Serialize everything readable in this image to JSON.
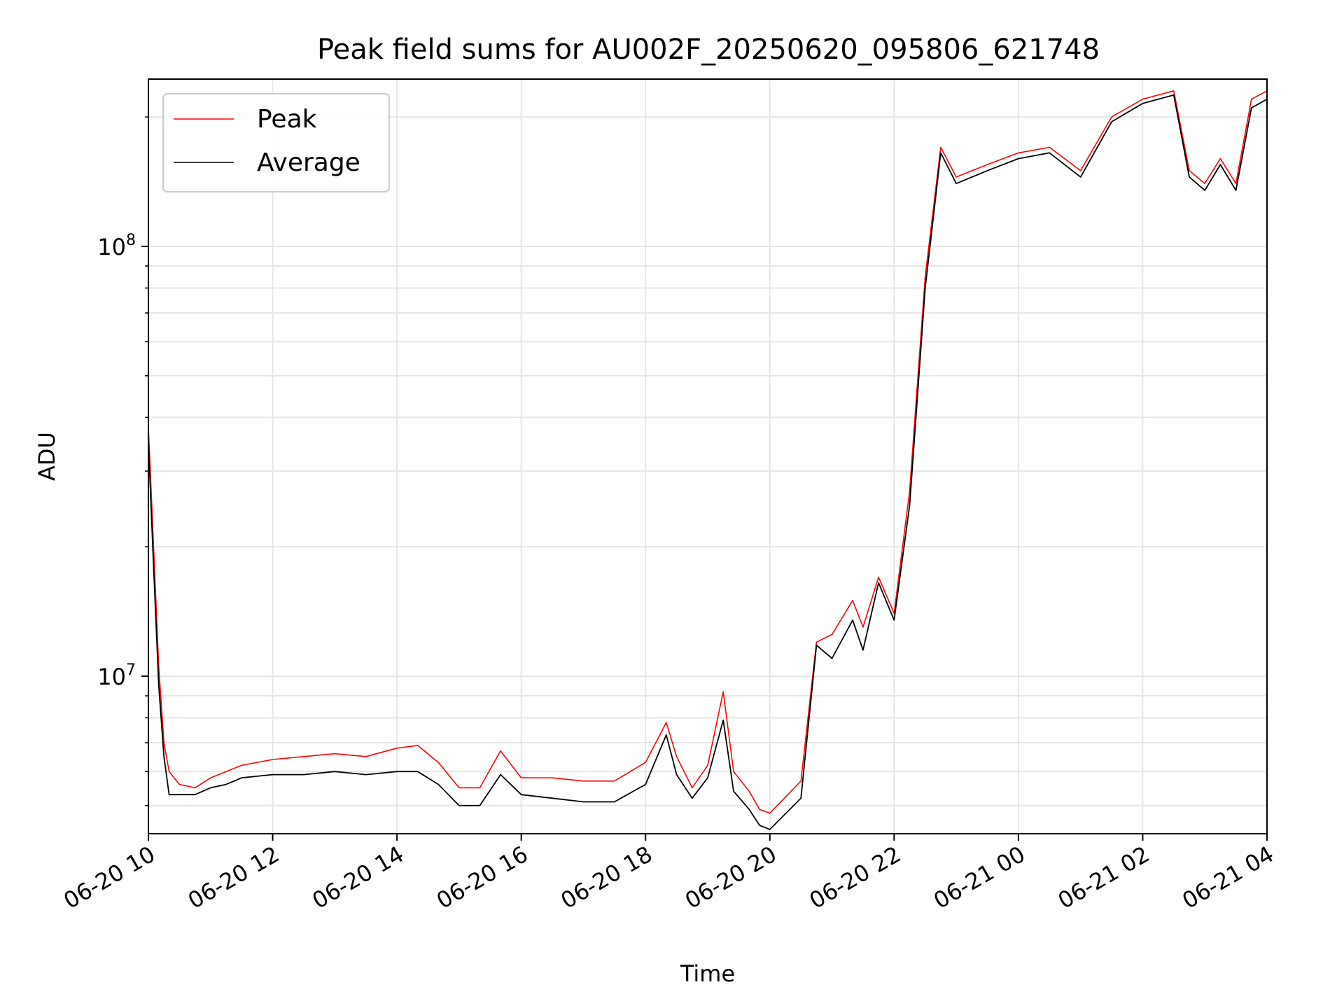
{
  "chart_data": {
    "type": "line",
    "title": "Peak field sums for AU002F_20250620_095806_621748",
    "xlabel": "Time",
    "ylabel": "ADU",
    "y_scale": "log",
    "ylim": [
      4300000,
      245000000
    ],
    "xlim": [
      "06-20 10:00",
      "06-21 04:00"
    ],
    "x_tick_labels": [
      "06-20 10",
      "06-20 12",
      "06-20 14",
      "06-20 16",
      "06-20 18",
      "06-20 20",
      "06-20 22",
      "06-21 00",
      "06-21 02",
      "06-21 04"
    ],
    "y_tick_labels": [
      "10^7",
      "10^8"
    ],
    "grid": true,
    "legend_position": "top-left",
    "series": [
      {
        "name": "Peak",
        "color": "#ff0000",
        "x": [
          "06-20 10:00",
          "06-20 10:05",
          "06-20 10:10",
          "06-20 10:15",
          "06-20 10:20",
          "06-20 10:30",
          "06-20 10:45",
          "06-20 11:00",
          "06-20 11:15",
          "06-20 11:30",
          "06-20 12:00",
          "06-20 12:30",
          "06-20 13:00",
          "06-20 13:30",
          "06-20 14:00",
          "06-20 14:20",
          "06-20 14:40",
          "06-20 15:00",
          "06-20 15:20",
          "06-20 15:40",
          "06-20 16:00",
          "06-20 16:30",
          "06-20 17:00",
          "06-20 17:30",
          "06-20 18:00",
          "06-20 18:20",
          "06-20 18:30",
          "06-20 18:45",
          "06-20 19:00",
          "06-20 19:15",
          "06-20 19:25",
          "06-20 19:40",
          "06-20 19:50",
          "06-20 20:00",
          "06-20 20:30",
          "06-20 20:45",
          "06-20 21:00",
          "06-20 21:20",
          "06-20 21:30",
          "06-20 21:45",
          "06-20 22:00",
          "06-20 22:15",
          "06-20 22:30",
          "06-20 22:45",
          "06-20 23:00",
          "06-20 23:30",
          "06-21 00:00",
          "06-21 00:30",
          "06-21 01:00",
          "06-21 01:30",
          "06-21 02:00",
          "06-21 02:30",
          "06-21 02:45",
          "06-21 03:00",
          "06-21 03:15",
          "06-21 03:30",
          "06-21 03:45",
          "06-21 04:00"
        ],
        "values": [
          38000000,
          20000000,
          10500000,
          7000000,
          6000000,
          5600000,
          5500000,
          5800000,
          6000000,
          6200000,
          6400000,
          6500000,
          6600000,
          6500000,
          6800000,
          6900000,
          6300000,
          5500000,
          5500000,
          6700000,
          5800000,
          5800000,
          5700000,
          5700000,
          6300000,
          7800000,
          6500000,
          5500000,
          6200000,
          9200000,
          6000000,
          5400000,
          4900000,
          4800000,
          5700000,
          12000000,
          12500000,
          15000000,
          13000000,
          17000000,
          14000000,
          27000000,
          85000000,
          170000000,
          145000000,
          155000000,
          165000000,
          170000000,
          150000000,
          200000000,
          220000000,
          230000000,
          150000000,
          140000000,
          160000000,
          140000000,
          220000000,
          230000000
        ]
      },
      {
        "name": "Average",
        "color": "#000000",
        "x": [
          "06-20 10:00",
          "06-20 10:05",
          "06-20 10:10",
          "06-20 10:15",
          "06-20 10:20",
          "06-20 10:30",
          "06-20 10:45",
          "06-20 11:00",
          "06-20 11:15",
          "06-20 11:30",
          "06-20 12:00",
          "06-20 12:30",
          "06-20 13:00",
          "06-20 13:30",
          "06-20 14:00",
          "06-20 14:20",
          "06-20 14:40",
          "06-20 15:00",
          "06-20 15:20",
          "06-20 15:40",
          "06-20 16:00",
          "06-20 16:30",
          "06-20 17:00",
          "06-20 17:30",
          "06-20 18:00",
          "06-20 18:20",
          "06-20 18:30",
          "06-20 18:45",
          "06-20 19:00",
          "06-20 19:15",
          "06-20 19:25",
          "06-20 19:40",
          "06-20 19:50",
          "06-20 20:00",
          "06-20 20:30",
          "06-20 20:45",
          "06-20 21:00",
          "06-20 21:20",
          "06-20 21:30",
          "06-20 21:45",
          "06-20 22:00",
          "06-20 22:15",
          "06-20 22:30",
          "06-20 22:45",
          "06-20 23:00",
          "06-20 23:30",
          "06-21 00:00",
          "06-21 00:30",
          "06-21 01:00",
          "06-21 01:30",
          "06-21 02:00",
          "06-21 02:30",
          "06-21 02:45",
          "06-21 03:00",
          "06-21 03:15",
          "06-21 03:30",
          "06-21 03:45",
          "06-21 04:00"
        ],
        "values": [
          35000000,
          18000000,
          9500000,
          6500000,
          5300000,
          5300000,
          5300000,
          5500000,
          5600000,
          5800000,
          5900000,
          5900000,
          6000000,
          5900000,
          6000000,
          6000000,
          5600000,
          5000000,
          5000000,
          5900000,
          5300000,
          5200000,
          5100000,
          5100000,
          5600000,
          7300000,
          5900000,
          5200000,
          5800000,
          7900000,
          5400000,
          4900000,
          4500000,
          4400000,
          5200000,
          11800000,
          11000000,
          13500000,
          11500000,
          16500000,
          13500000,
          25000000,
          80000000,
          165000000,
          140000000,
          150000000,
          160000000,
          165000000,
          145000000,
          195000000,
          215000000,
          225000000,
          145000000,
          135000000,
          155000000,
          135000000,
          210000000,
          220000000
        ]
      }
    ]
  }
}
